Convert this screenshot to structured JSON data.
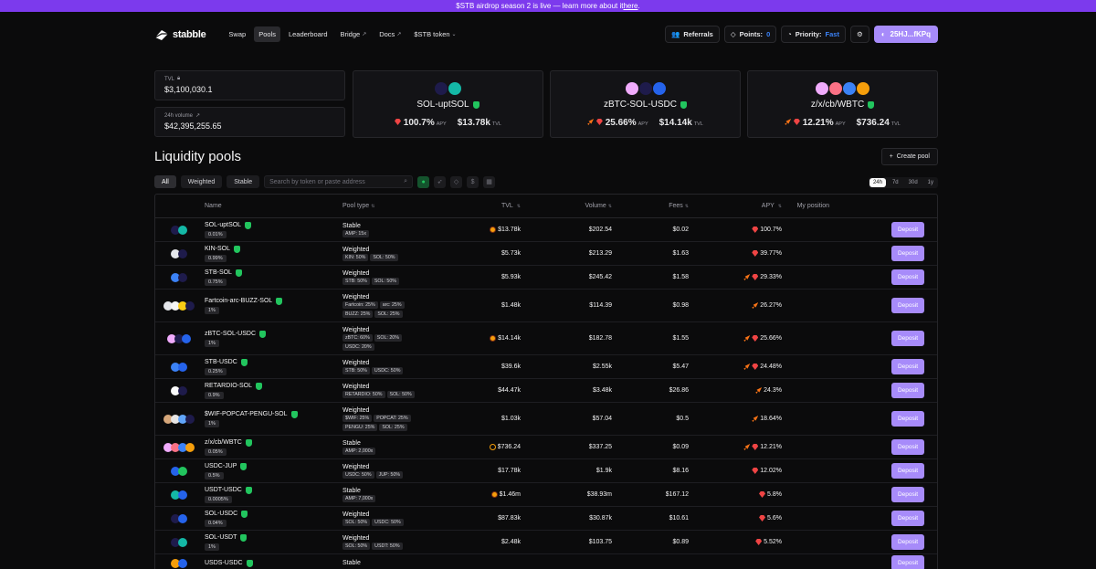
{
  "banner": {
    "text": "$STB airdrop season 2 is live — learn more about it ",
    "link": "here",
    "end": "."
  },
  "nav": {
    "brand": "stabble",
    "links": [
      {
        "label": "Swap"
      },
      {
        "label": "Pools",
        "active": true
      },
      {
        "label": "Leaderboard"
      },
      {
        "label": "Bridge",
        "external": true
      },
      {
        "label": "Docs",
        "external": true
      },
      {
        "label": "$STB token",
        "dropdown": true
      }
    ],
    "referrals": "Referrals",
    "points_label": "Points:",
    "points_value": "0",
    "priority_label": "Priority:",
    "priority_value": "Fast",
    "wallet": "25HJ...fKPq"
  },
  "stats": {
    "tvl_label": "TVL",
    "tvl_value": "$3,100,030.1",
    "volume_label": "24h volume",
    "volume_value": "$42,395,255.65"
  },
  "featured": [
    {
      "name": "SOL-uptSOL",
      "apy": "100.7%",
      "apy_label": "APY",
      "tvl": "$13.78k",
      "tvl_label": "TVL"
    },
    {
      "name": "zBTC-SOL-USDC",
      "apy": "25.66%",
      "apy_label": "APY",
      "tvl": "$14.14k",
      "tvl_label": "TVL"
    },
    {
      "name": "z/x/cb/WBTC",
      "apy": "12.21%",
      "apy_label": "APY",
      "tvl": "$736.24",
      "tvl_label": "TVL"
    }
  ],
  "page_title": "Liquidity pools",
  "create_pool": "Create pool",
  "filters": {
    "tabs": [
      "All",
      "Weighted",
      "Stable"
    ],
    "search_placeholder": "Search by token or paste address"
  },
  "periods": [
    "24h",
    "7d",
    "30d",
    "1y"
  ],
  "columns": {
    "name": "Name",
    "pool_type": "Pool type",
    "tvl": "TVL",
    "volume": "Volume",
    "fees": "Fees",
    "apy": "APY",
    "position": "My position"
  },
  "deposit_label": "Deposit",
  "pools": [
    {
      "name": "SOL-uptSOL",
      "fee": "0.01%",
      "type": "Stable",
      "tags": [
        "AMP: 15x"
      ],
      "tvl": "$13.78k",
      "volume": "$202.54",
      "fees": "$0.02",
      "apy": "100.7%",
      "tvl_icon": "coin",
      "apy_icons": [
        "gem"
      ]
    },
    {
      "name": "KIN-SOL",
      "fee": "0.99%",
      "type": "Weighted",
      "tags": [
        "KIN: 50%",
        "SOL: 50%"
      ],
      "tvl": "$5.73k",
      "volume": "$213.29",
      "fees": "$1.63",
      "apy": "39.77%",
      "tvl_icon": "",
      "apy_icons": [
        "gem"
      ]
    },
    {
      "name": "STB-SOL",
      "fee": "0.75%",
      "type": "Weighted",
      "tags": [
        "STB: 50%",
        "SOL: 50%"
      ],
      "tvl": "$5.93k",
      "volume": "$245.42",
      "fees": "$1.58",
      "apy": "29.33%",
      "tvl_icon": "",
      "apy_icons": [
        "rocket",
        "gem"
      ]
    },
    {
      "name": "Fartcoin-arc-BUZZ-SOL",
      "fee": "1%",
      "type": "Weighted",
      "tags": [
        "Fartcoin: 25%",
        "arc: 25%",
        "BUZZ: 25%",
        "SOL: 25%"
      ],
      "tvl": "$1.48k",
      "volume": "$114.39",
      "fees": "$0.98",
      "apy": "26.27%",
      "tvl_icon": "",
      "apy_icons": [
        "rocket"
      ]
    },
    {
      "name": "zBTC-SOL-USDC",
      "fee": "1%",
      "type": "Weighted",
      "tags": [
        "zBTC: 60%",
        "SOL: 20%",
        "USDC: 20%"
      ],
      "tvl": "$14.14k",
      "volume": "$182.78",
      "fees": "$1.55",
      "apy": "25.66%",
      "tvl_icon": "coin",
      "apy_icons": [
        "rocket",
        "gem"
      ]
    },
    {
      "name": "STB-USDC",
      "fee": "0.25%",
      "type": "Weighted",
      "tags": [
        "STB: 50%",
        "USDC: 50%"
      ],
      "tvl": "$39.6k",
      "volume": "$2.55k",
      "fees": "$5.47",
      "apy": "24.48%",
      "tvl_icon": "",
      "apy_icons": [
        "rocket",
        "gem"
      ]
    },
    {
      "name": "RETARDIO-SOL",
      "fee": "0.9%",
      "type": "Weighted",
      "tags": [
        "RETARDIO: 50%",
        "SOL: 50%"
      ],
      "tvl": "$44.47k",
      "volume": "$3.48k",
      "fees": "$26.86",
      "apy": "24.3%",
      "tvl_icon": "",
      "apy_icons": [
        "rocket"
      ]
    },
    {
      "name": "$WIF-POPCAT-PENGU-SOL",
      "fee": "1%",
      "type": "Weighted",
      "tags": [
        "$WIF: 25%",
        "POPCAT: 25%",
        "PENGU: 25%",
        "SOL: 25%"
      ],
      "tvl": "$1.03k",
      "volume": "$57.04",
      "fees": "$0.5",
      "apy": "18.64%",
      "tvl_icon": "",
      "apy_icons": [
        "rocket"
      ]
    },
    {
      "name": "z/x/cb/WBTC",
      "fee": "0.05%",
      "type": "Stable",
      "tags": [
        "AMP: 2,000x"
      ],
      "tvl": "$736.24",
      "volume": "$337.25",
      "fees": "$0.09",
      "apy": "12.21%",
      "tvl_icon": "ring",
      "apy_icons": [
        "rocket",
        "gem"
      ]
    },
    {
      "name": "USDC-JUP",
      "fee": "0.5%",
      "type": "Weighted",
      "tags": [
        "USDC: 50%",
        "JUP: 50%"
      ],
      "tvl": "$17.78k",
      "volume": "$1.9k",
      "fees": "$8.16",
      "apy": "12.02%",
      "tvl_icon": "",
      "apy_icons": [
        "gem"
      ]
    },
    {
      "name": "USDT-USDC",
      "fee": "0.0005%",
      "type": "Stable",
      "tags": [
        "AMP: 7,000x"
      ],
      "tvl": "$1.46m",
      "volume": "$38.93m",
      "fees": "$167.12",
      "apy": "5.8%",
      "tvl_icon": "coin",
      "apy_icons": [
        "gem"
      ]
    },
    {
      "name": "SOL-USDC",
      "fee": "0.04%",
      "type": "Weighted",
      "tags": [
        "SOL: 50%",
        "USDC: 50%"
      ],
      "tvl": "$87.83k",
      "volume": "$30.87k",
      "fees": "$10.61",
      "apy": "5.6%",
      "tvl_icon": "",
      "apy_icons": [
        "gem"
      ]
    },
    {
      "name": "SOL-USDT",
      "fee": "1%",
      "type": "Weighted",
      "tags": [
        "SOL: 50%",
        "USDT: 50%"
      ],
      "tvl": "$2.48k",
      "volume": "$103.75",
      "fees": "$0.89",
      "apy": "5.52%",
      "tvl_icon": "",
      "apy_icons": [
        "gem"
      ]
    },
    {
      "name": "USDS-USDC",
      "fee": "",
      "type": "Stable",
      "tags": [],
      "tvl": "",
      "volume": "",
      "fees": "",
      "apy": "",
      "tvl_icon": "",
      "apy_icons": []
    }
  ],
  "colors": {
    "accent": "#a78bfa",
    "banner": "#7c3aed",
    "verified": "#22c55e",
    "bg": "#0b0b0c"
  }
}
